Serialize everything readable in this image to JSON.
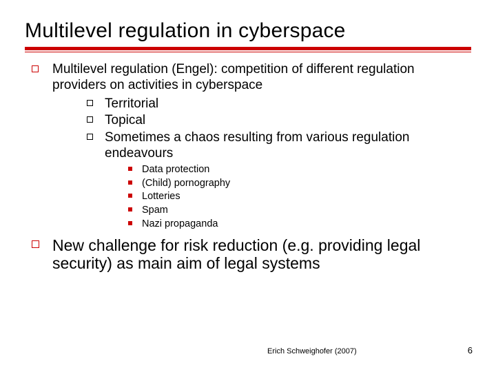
{
  "title": "Multilevel regulation in cyberspace",
  "colors": {
    "accent": "#cc0000",
    "text": "#000000",
    "background": "#ffffff"
  },
  "typography": {
    "family": "Verdana",
    "title_size_pt": 30,
    "body_size_pt": 19,
    "sub_size_pt": 14.5,
    "second_body_size_pt": 23,
    "footer_size_pt": 11
  },
  "bullets": {
    "item1": "Multilevel regulation (Engel): competition of different regulation providers on activities in cyberspace",
    "sub1": "Territorial",
    "sub2": "Topical",
    "sub3": "Sometimes a chaos resulting from various regulation endeavours",
    "ex1": "Data protection",
    "ex2": "(Child) pornography",
    "ex3": "Lotteries",
    "ex4": "Spam",
    "ex5": "Nazi propaganda",
    "item2": "New challenge for risk reduction (e.g. providing legal security) as main aim of legal systems"
  },
  "footer": {
    "credit": "Erich Schweighofer (2007)",
    "page": "6"
  }
}
